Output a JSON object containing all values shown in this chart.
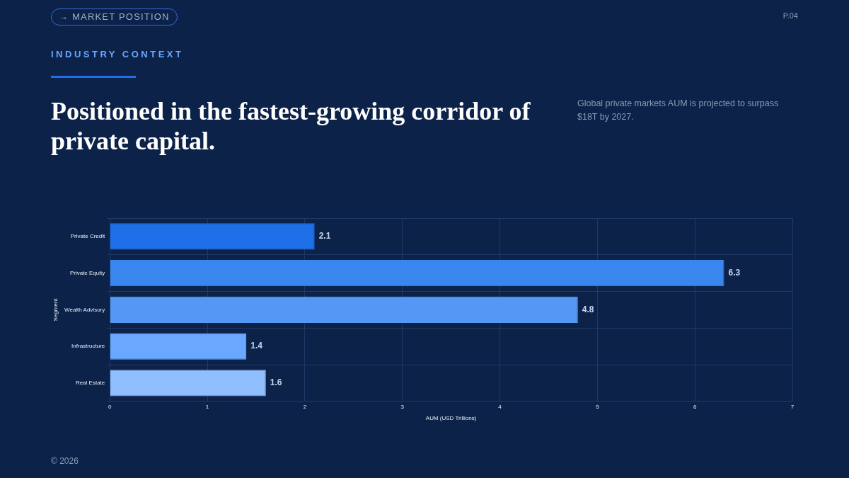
{
  "chart_data": {
    "type": "bar",
    "orientation": "horizontal",
    "title": "Positioned in the fastest-growing corridor of private capital.",
    "subtitle": "INDUSTRY CONTEXT",
    "annotations": [
      "→ MARKET POSITION",
      "P.04",
      "Global private markets AUM is projected to surpass $18T by 2027.",
      "© 2026"
    ],
    "categories": [
      "Private Credit",
      "Private Equity",
      "Wealth Advisory",
      "Infrastructure",
      "Real Estate"
    ],
    "values": [
      2.1,
      6.3,
      4.8,
      1.4,
      1.6
    ],
    "colors": [
      "#1f6fe8",
      "#3a86ef",
      "#5598f3",
      "#6aa8ff",
      "#8fbfff"
    ],
    "xlabel": "AUM (USD Trillions)",
    "ylabel": "Segment",
    "xlim": [
      0,
      7
    ],
    "xticks": [
      0,
      1,
      2,
      3,
      4,
      5,
      6,
      7
    ],
    "grid": true,
    "data_labels": true
  }
}
